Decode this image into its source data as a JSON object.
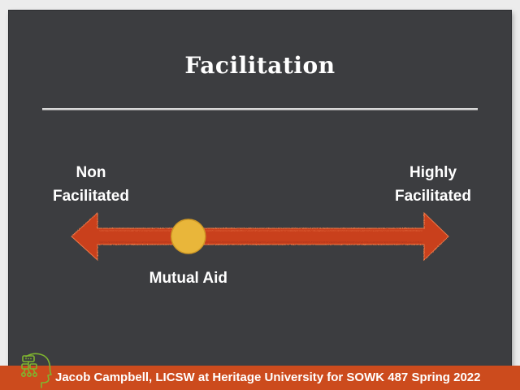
{
  "slide": {
    "title": "Facilitation"
  },
  "continuum": {
    "left_line1": "Non",
    "left_line2": "Facilitated",
    "right_line1": "Highly",
    "right_line2": "Facilitated",
    "marker_label": "Mutual Aid",
    "marker_position": 0.31
  },
  "footer": {
    "text": "Jacob Campbell, LICSW at Heritage University for SOWK 487 Spring 2022"
  },
  "colors": {
    "background": "#3c3d40",
    "arrow": "#c9411c",
    "marker": "#e9b63a",
    "footer": "#cc4b1d",
    "logo": "#7fb52f"
  }
}
